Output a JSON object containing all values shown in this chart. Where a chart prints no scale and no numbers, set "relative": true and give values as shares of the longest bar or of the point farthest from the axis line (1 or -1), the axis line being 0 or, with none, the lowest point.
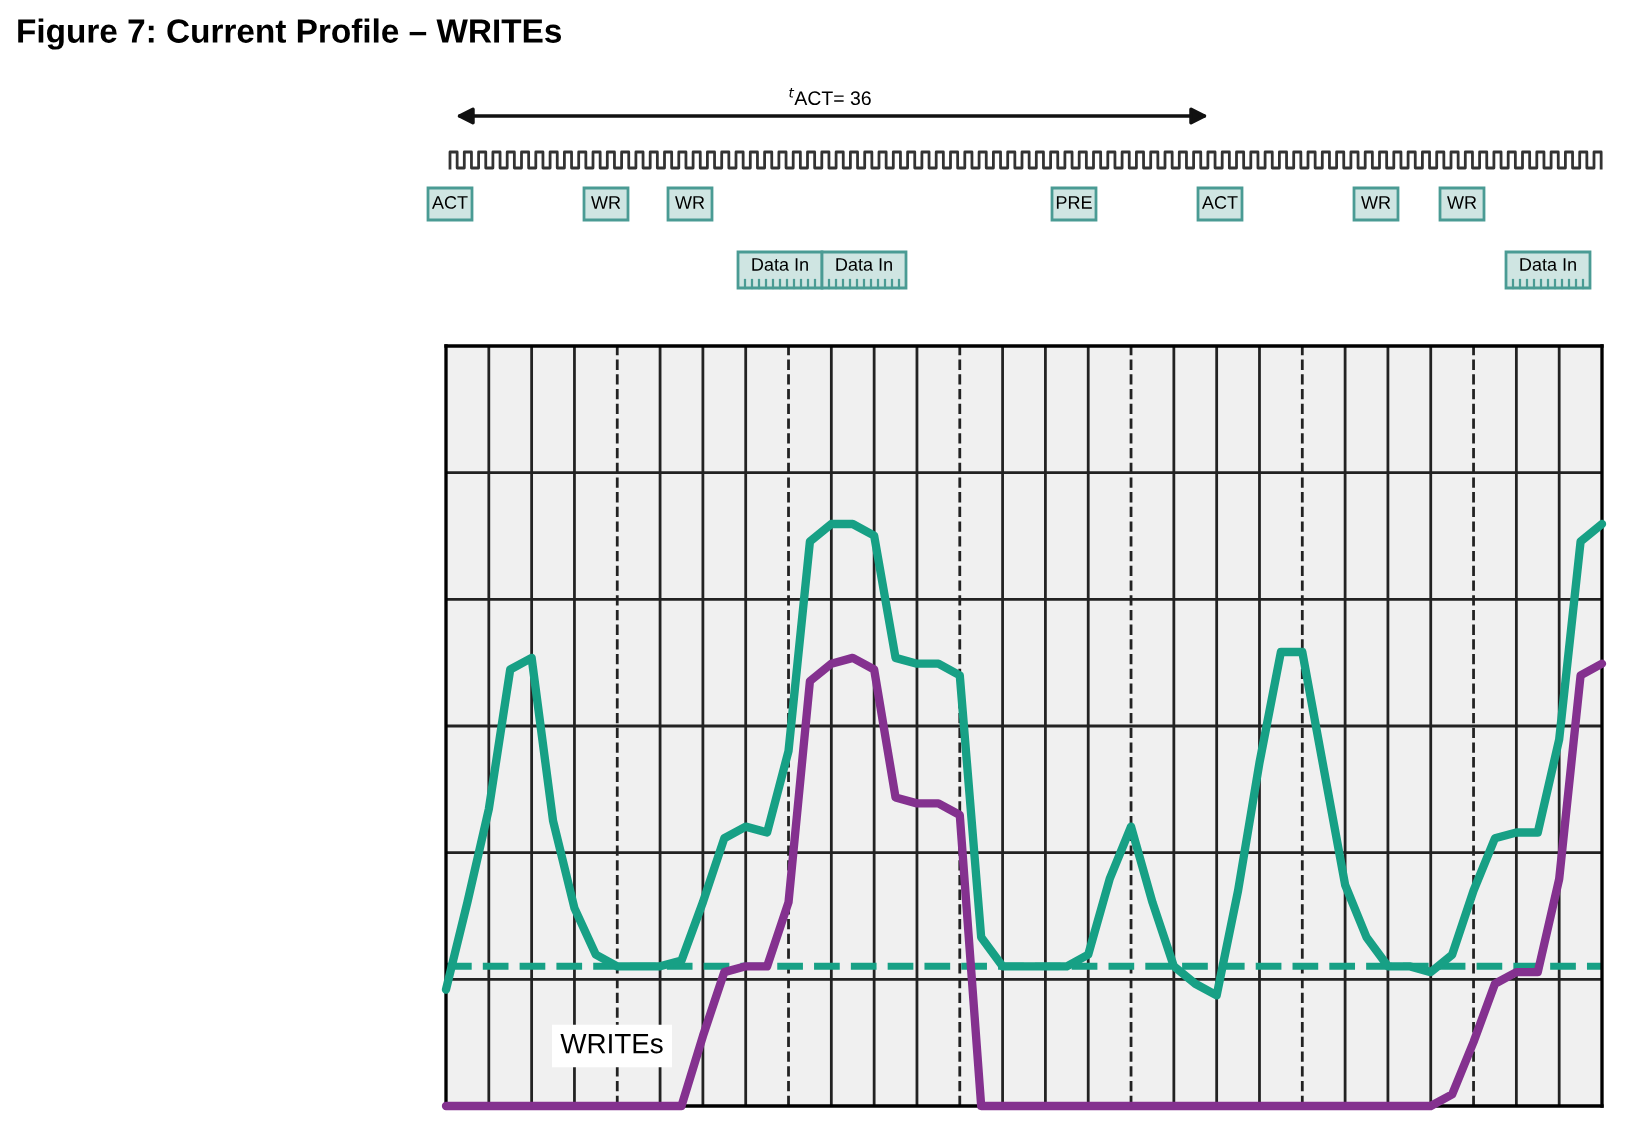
{
  "chart_data": {
    "type": "line",
    "title": "Figure 7: Current Profile – WRITEs",
    "relative": true,
    "grid": true,
    "legend": false,
    "marker": "none",
    "line_style": "solid",
    "categories": [
      null,
      null,
      null,
      null,
      null,
      null,
      null,
      null,
      null,
      null,
      null,
      null,
      null,
      null,
      null,
      null,
      null,
      null,
      null,
      null,
      null,
      null,
      null,
      null,
      null,
      null,
      null,
      null,
      null,
      null,
      null,
      null,
      null,
      null,
      null,
      null,
      null,
      null,
      null,
      null,
      null,
      null,
      null,
      null,
      null,
      null,
      null,
      null,
      null,
      null,
      null,
      null,
      null,
      null,
      null
    ],
    "series": [
      {
        "color": "#17a085",
        "values": [
          0.2,
          0.35,
          0.51,
          0.75,
          0.77,
          0.49,
          0.34,
          0.26,
          0.24,
          0.24,
          0.24,
          0.25,
          0.35,
          0.46,
          0.48,
          0.47,
          0.61,
          0.97,
          1.0,
          1.0,
          0.98,
          0.77,
          0.76,
          0.76,
          0.74,
          0.29,
          0.24,
          0.24,
          0.24,
          0.24,
          0.26,
          0.39,
          0.48,
          0.35,
          0.24,
          0.21,
          0.19,
          0.37,
          0.59,
          0.78,
          0.78,
          0.58,
          0.38,
          0.29,
          0.24,
          0.24,
          0.23,
          0.26,
          0.37,
          0.46,
          0.47,
          0.47,
          0.63,
          0.97,
          1.0
        ]
      },
      {
        "color": "#84318f",
        "values": [
          0,
          0,
          0,
          0,
          0,
          0,
          0,
          0,
          0,
          0,
          0,
          0,
          0.12,
          0.23,
          0.24,
          0.24,
          0.35,
          0.73,
          0.76,
          0.77,
          0.75,
          0.53,
          0.52,
          0.52,
          0.5,
          0,
          0,
          0,
          0,
          0,
          0,
          0,
          0,
          0,
          0,
          0,
          0,
          0,
          0,
          0,
          0,
          0,
          0,
          0,
          0,
          0,
          0,
          0.02,
          0.11,
          0.21,
          0.23,
          0.23,
          0.39,
          0.74,
          0.76
        ]
      }
    ],
    "ref_lines": [
      {
        "axis": "y",
        "value": 0.24,
        "color": "#17a085",
        "line_style": "dashed"
      }
    ],
    "annotations": [
      "$^{t}$ACT= 36",
      "ACT",
      "WR",
      "WR",
      "PRE",
      "ACT",
      "WR",
      "WR",
      "Data In",
      "Data In",
      "Data In",
      "WRITEs"
    ]
  }
}
